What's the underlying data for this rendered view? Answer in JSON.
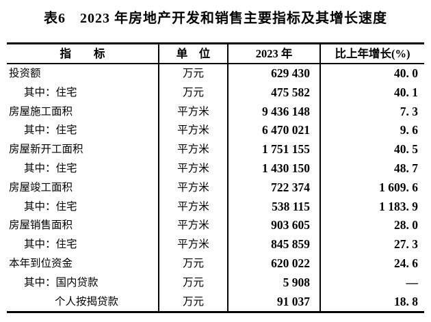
{
  "title": "表6　2023 年房地产开发和销售主要指标及其增长速度",
  "colors": {
    "background": "#ffffff",
    "text": "#000000",
    "border": "#000000"
  },
  "table": {
    "headers": [
      "指　　标",
      "单　位",
      "2023 年",
      "比上年增长(%)"
    ],
    "rows": [
      {
        "indicator": "投资额",
        "unit": "万元",
        "value": "629 430",
        "growth": "40. 0"
      },
      {
        "indicator": "其中：住宅",
        "unit": "万元",
        "value": "475 582",
        "growth": "40. 1"
      },
      {
        "indicator": "房屋施工面积",
        "unit": "平方米",
        "value": "9 436 148",
        "growth": "7. 3"
      },
      {
        "indicator": "其中：住宅",
        "unit": "平方米",
        "value": "6 470 021",
        "growth": "9. 6"
      },
      {
        "indicator": "房屋新开工面积",
        "unit": "平方米",
        "value": "1 751 155",
        "growth": "40. 5"
      },
      {
        "indicator": "其中：住宅",
        "unit": "平方米",
        "value": "1 430 150",
        "growth": "48. 7"
      },
      {
        "indicator": "房屋竣工面积",
        "unit": "平方米",
        "value": "722 374",
        "growth": "1 609. 6"
      },
      {
        "indicator": "其中：住宅",
        "unit": "平方米",
        "value": "538 115",
        "growth": "1 183. 9"
      },
      {
        "indicator": "房屋销售面积",
        "unit": "平方米",
        "value": "903 605",
        "growth": "28. 0"
      },
      {
        "indicator": "其中：住宅",
        "unit": "平方米",
        "value": "845 859",
        "growth": "27. 3"
      },
      {
        "indicator": "本年到位资金",
        "unit": "万元",
        "value": "620 022",
        "growth": "24. 6"
      },
      {
        "indicator": "其中：国内贷款",
        "unit": "万元",
        "value": "5 908",
        "growth": "—"
      },
      {
        "indicator": "个人按揭贷款",
        "unit": "万元",
        "value": "91 037",
        "growth": "18. 8"
      }
    ]
  }
}
